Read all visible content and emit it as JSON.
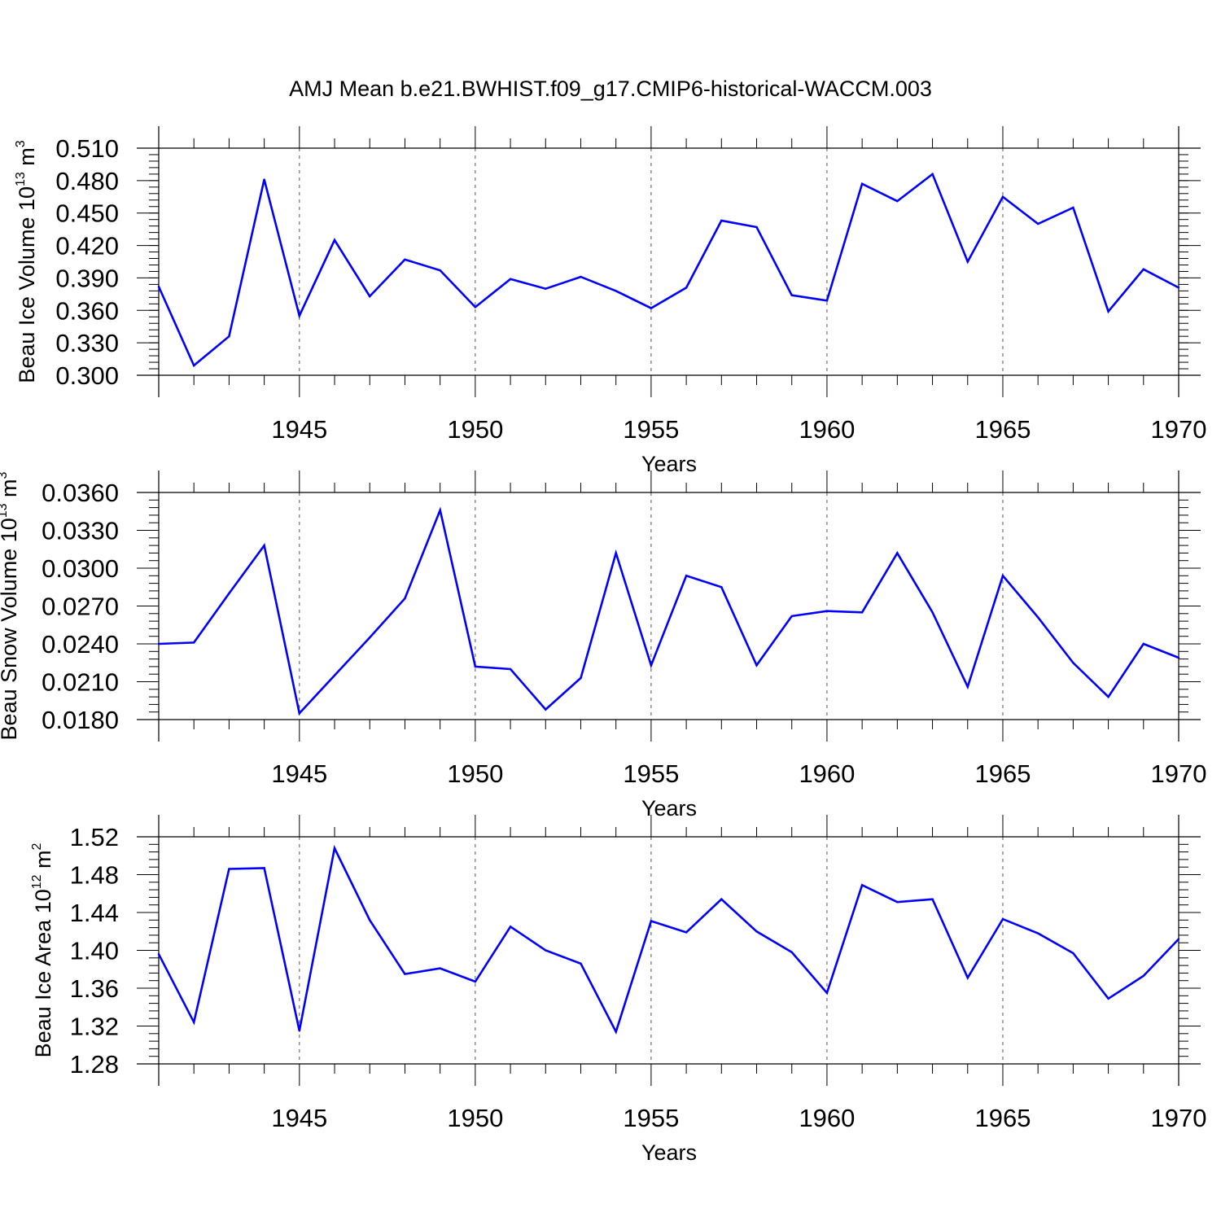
{
  "title": "AMJ Mean b.e21.BWHIST.f09_g17.CMIP6-historical-WACCM.003",
  "colors": {
    "series": "#0000ff",
    "axis": "#000000",
    "grid": "#555555",
    "background": "#ffffff"
  },
  "chart_data": [
    {
      "type": "line",
      "ylabel": {
        "text": "Beau Ice Volume 10",
        "exp": "13",
        "unit": " m",
        "unit_exp": "3"
      },
      "xlabel": "Years",
      "xlim": [
        1941,
        1970
      ],
      "ylim": [
        0.3,
        0.51
      ],
      "yticks": [
        0.3,
        0.33,
        0.36,
        0.39,
        0.42,
        0.45,
        0.48,
        0.51
      ],
      "ytick_labels": [
        "0.300",
        "0.330",
        "0.360",
        "0.390",
        "0.420",
        "0.450",
        "0.480",
        "0.510"
      ],
      "xticks": [
        1945,
        1950,
        1955,
        1960,
        1965,
        1970
      ],
      "xtick_labels": [
        "1945",
        "1950",
        "1955",
        "1960",
        "1965",
        "1970"
      ],
      "grid": "vertical dashed at major x ticks",
      "x": [
        1941,
        1942,
        1943,
        1944,
        1945,
        1946,
        1947,
        1948,
        1949,
        1950,
        1951,
        1952,
        1953,
        1954,
        1955,
        1956,
        1957,
        1958,
        1959,
        1960,
        1961,
        1962,
        1963,
        1964,
        1965,
        1966,
        1967,
        1968,
        1969,
        1970
      ],
      "y": [
        0.382,
        0.309,
        0.336,
        0.481,
        0.355,
        0.425,
        0.373,
        0.407,
        0.397,
        0.363,
        0.389,
        0.38,
        0.391,
        0.378,
        0.362,
        0.381,
        0.443,
        0.437,
        0.374,
        0.369,
        0.477,
        0.461,
        0.486,
        0.405,
        0.465,
        0.44,
        0.455,
        0.359,
        0.398,
        0.381
      ]
    },
    {
      "type": "line",
      "ylabel": {
        "text": "Beau Snow Volume 10",
        "exp": "13",
        "unit": " m",
        "unit_exp": "3"
      },
      "xlabel": "Years",
      "xlim": [
        1941,
        1970
      ],
      "ylim": [
        0.018,
        0.036
      ],
      "yticks": [
        0.018,
        0.021,
        0.024,
        0.027,
        0.03,
        0.033,
        0.036
      ],
      "ytick_labels": [
        "0.0180",
        "0.0210",
        "0.0240",
        "0.0270",
        "0.0300",
        "0.0330",
        "0.0360"
      ],
      "xticks": [
        1945,
        1950,
        1955,
        1960,
        1965,
        1970
      ],
      "xtick_labels": [
        "1945",
        "1950",
        "1955",
        "1960",
        "1965",
        "1970"
      ],
      "grid": "vertical dashed at major x ticks",
      "x": [
        1941,
        1942,
        1943,
        1944,
        1945,
        1946,
        1947,
        1948,
        1949,
        1950,
        1951,
        1952,
        1953,
        1954,
        1955,
        1956,
        1957,
        1958,
        1959,
        1960,
        1961,
        1962,
        1963,
        1964,
        1965,
        1966,
        1967,
        1968,
        1969,
        1970
      ],
      "y": [
        0.024,
        0.0241,
        0.028,
        0.0318,
        0.0185,
        0.0215,
        0.0245,
        0.0276,
        0.0346,
        0.0222,
        0.022,
        0.0188,
        0.0213,
        0.0312,
        0.0223,
        0.0294,
        0.0285,
        0.0223,
        0.0262,
        0.0266,
        0.0265,
        0.0312,
        0.0265,
        0.0206,
        0.0294,
        0.0261,
        0.0225,
        0.0198,
        0.024,
        0.0229
      ]
    },
    {
      "type": "line",
      "ylabel": {
        "text": "Beau Ice Area 10",
        "exp": "12",
        "unit": " m",
        "unit_exp": "2"
      },
      "xlabel": "Years",
      "xlim": [
        1941,
        1970
      ],
      "ylim": [
        1.28,
        1.52
      ],
      "yticks": [
        1.28,
        1.32,
        1.36,
        1.4,
        1.44,
        1.48,
        1.52
      ],
      "ytick_labels": [
        "1.28",
        "1.32",
        "1.36",
        "1.40",
        "1.44",
        "1.48",
        "1.52"
      ],
      "xticks": [
        1945,
        1950,
        1955,
        1960,
        1965,
        1970
      ],
      "xtick_labels": [
        "1945",
        "1950",
        "1955",
        "1960",
        "1965",
        "1970"
      ],
      "grid": "vertical dashed at major x ticks",
      "x": [
        1941,
        1942,
        1943,
        1944,
        1945,
        1946,
        1947,
        1948,
        1949,
        1950,
        1951,
        1952,
        1953,
        1954,
        1955,
        1956,
        1957,
        1958,
        1959,
        1960,
        1961,
        1962,
        1963,
        1964,
        1965,
        1966,
        1967,
        1968,
        1969,
        1970
      ],
      "y": [
        1.396,
        1.324,
        1.486,
        1.487,
        1.315,
        1.508,
        1.432,
        1.375,
        1.381,
        1.367,
        1.425,
        1.4,
        1.386,
        1.314,
        1.431,
        1.419,
        1.454,
        1.42,
        1.398,
        1.355,
        1.469,
        1.451,
        1.454,
        1.371,
        1.433,
        1.418,
        1.397,
        1.349,
        1.373,
        1.412
      ]
    }
  ]
}
